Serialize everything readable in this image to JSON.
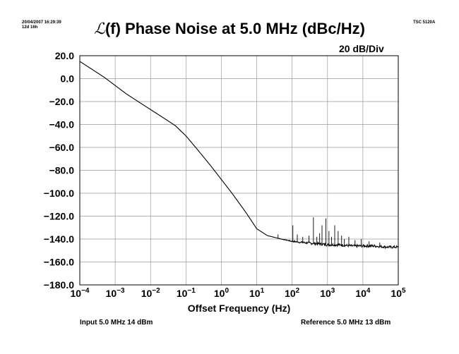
{
  "header": {
    "timestamp_line1": "20/04/2007 16:29:39",
    "timestamp_line2": "12d 16h",
    "instrument": "TSC 5120A",
    "title_symbol": "ℒ",
    "title_text": "(f) Phase Noise at 5.0 MHz (dBc/Hz)",
    "scale": "20 dB/Div"
  },
  "footer": {
    "input": "Input 5.0 MHz 14 dBm",
    "reference": "Reference 5.0 MHz 13 dBm"
  },
  "chart_data": {
    "type": "line",
    "title": "ℒ(f) Phase Noise at 5.0 MHz (dBc/Hz)",
    "xlabel": "Offset Frequency (Hz)",
    "ylabel": "",
    "x_scale": "log",
    "xlim": [
      0.0001,
      100000
    ],
    "ylim": [
      -180,
      20
    ],
    "x_ticks": [
      {
        "exp": -4,
        "label": "10",
        "sup": "−4"
      },
      {
        "exp": -3,
        "label": "10",
        "sup": "−3"
      },
      {
        "exp": -2,
        "label": "10",
        "sup": "−2"
      },
      {
        "exp": -1,
        "label": "10",
        "sup": "−1"
      },
      {
        "exp": 0,
        "label": "10",
        "sup": "0"
      },
      {
        "exp": 1,
        "label": "10",
        "sup": "1"
      },
      {
        "exp": 2,
        "label": "10",
        "sup": "2"
      },
      {
        "exp": 3,
        "label": "10",
        "sup": "3"
      },
      {
        "exp": 4,
        "label": "10",
        "sup": "4"
      },
      {
        "exp": 5,
        "label": "10",
        "sup": "5"
      }
    ],
    "y_ticks": [
      {
        "value": 20,
        "label": "20.0"
      },
      {
        "value": 0,
        "label": "0.0"
      },
      {
        "value": -20,
        "label": "−20.0"
      },
      {
        "value": -40,
        "label": "−40.0"
      },
      {
        "value": -60,
        "label": "−60.0"
      },
      {
        "value": -80,
        "label": "−80.0"
      },
      {
        "value": -100,
        "label": "−100.0"
      },
      {
        "value": -120,
        "label": "−120.0"
      },
      {
        "value": -140,
        "label": "−140.0"
      },
      {
        "value": -160,
        "label": "−160.0"
      },
      {
        "value": -180,
        "label": "−180.0"
      }
    ],
    "grid": true,
    "series": [
      {
        "color": "#000000",
        "x": [
          0.0001,
          0.0002,
          0.0005,
          0.001,
          0.002,
          0.005,
          0.01,
          0.02,
          0.05,
          0.1,
          0.2,
          0.5,
          1,
          2,
          5,
          10,
          20,
          50,
          100,
          200,
          500,
          1000,
          2000,
          5000,
          10000,
          20000,
          50000,
          100000
        ],
        "y": [
          15,
          9,
          1,
          -6,
          -13,
          -21,
          -27,
          -33,
          -41,
          -50,
          -61,
          -76,
          -88,
          -100,
          -117,
          -131,
          -137,
          -140,
          -142,
          -143,
          -144,
          -145,
          -145,
          -146,
          -146,
          -146,
          -147,
          -147
        ]
      }
    ],
    "spurs": [
      {
        "x": 40,
        "y": -136
      },
      {
        "x": 105,
        "y": -128
      },
      {
        "x": 140,
        "y": -136
      },
      {
        "x": 200,
        "y": -138
      },
      {
        "x": 300,
        "y": -137
      },
      {
        "x": 400,
        "y": -121
      },
      {
        "x": 500,
        "y": -138
      },
      {
        "x": 600,
        "y": -135
      },
      {
        "x": 700,
        "y": -128
      },
      {
        "x": 900,
        "y": -122
      },
      {
        "x": 1100,
        "y": -133
      },
      {
        "x": 1300,
        "y": -138
      },
      {
        "x": 1600,
        "y": -128
      },
      {
        "x": 2000,
        "y": -133
      },
      {
        "x": 2500,
        "y": -137
      },
      {
        "x": 3000,
        "y": -140
      },
      {
        "x": 4000,
        "y": -138
      },
      {
        "x": 6000,
        "y": -141
      },
      {
        "x": 9000,
        "y": -140
      },
      {
        "x": 15000,
        "y": -142
      },
      {
        "x": 30000,
        "y": -143
      }
    ]
  }
}
